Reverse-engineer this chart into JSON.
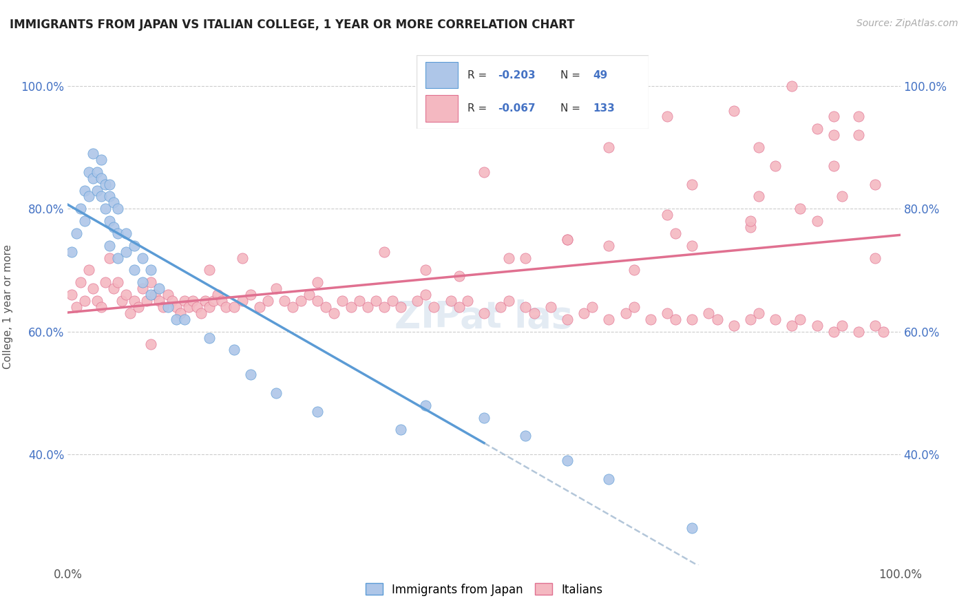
{
  "title": "IMMIGRANTS FROM JAPAN VS ITALIAN COLLEGE, 1 YEAR OR MORE CORRELATION CHART",
  "source_text": "Source: ZipAtlas.com",
  "ylabel": "College, 1 year or more",
  "xlim": [
    0.0,
    1.0
  ],
  "ylim": [
    0.22,
    1.06
  ],
  "x_tick_labels": [
    "0.0%",
    "100.0%"
  ],
  "y_tick_labels": [
    "40.0%",
    "60.0%",
    "80.0%",
    "100.0%"
  ],
  "y_tick_values": [
    0.4,
    0.6,
    0.8,
    1.0
  ],
  "color_japan": "#aec6e8",
  "color_italy": "#f4b8c1",
  "color_japan_line": "#5b9bd5",
  "color_italy_line": "#e07090",
  "color_japan_dark": "#5b9bd5",
  "color_italy_dark": "#e07090",
  "color_dashed": "#a0b8d0",
  "japan_x": [
    0.005,
    0.01,
    0.015,
    0.02,
    0.02,
    0.025,
    0.025,
    0.03,
    0.03,
    0.035,
    0.035,
    0.04,
    0.04,
    0.04,
    0.045,
    0.045,
    0.05,
    0.05,
    0.05,
    0.05,
    0.055,
    0.055,
    0.06,
    0.06,
    0.06,
    0.07,
    0.07,
    0.08,
    0.08,
    0.09,
    0.09,
    0.1,
    0.1,
    0.11,
    0.12,
    0.13,
    0.14,
    0.17,
    0.2,
    0.22,
    0.25,
    0.3,
    0.4,
    0.43,
    0.5,
    0.55,
    0.6,
    0.65,
    0.75
  ],
  "japan_y": [
    0.73,
    0.76,
    0.8,
    0.83,
    0.78,
    0.86,
    0.82,
    0.89,
    0.85,
    0.86,
    0.83,
    0.88,
    0.85,
    0.82,
    0.84,
    0.8,
    0.84,
    0.82,
    0.78,
    0.74,
    0.81,
    0.77,
    0.8,
    0.76,
    0.72,
    0.76,
    0.73,
    0.74,
    0.7,
    0.72,
    0.68,
    0.7,
    0.66,
    0.67,
    0.64,
    0.62,
    0.62,
    0.59,
    0.57,
    0.53,
    0.5,
    0.47,
    0.44,
    0.48,
    0.46,
    0.43,
    0.39,
    0.36,
    0.28
  ],
  "italy_x": [
    0.005,
    0.01,
    0.015,
    0.02,
    0.025,
    0.03,
    0.035,
    0.04,
    0.045,
    0.05,
    0.055,
    0.06,
    0.065,
    0.07,
    0.075,
    0.08,
    0.085,
    0.09,
    0.095,
    0.1,
    0.105,
    0.11,
    0.115,
    0.12,
    0.125,
    0.13,
    0.135,
    0.14,
    0.145,
    0.15,
    0.155,
    0.16,
    0.165,
    0.17,
    0.175,
    0.18,
    0.185,
    0.19,
    0.2,
    0.21,
    0.22,
    0.23,
    0.24,
    0.25,
    0.26,
    0.27,
    0.28,
    0.29,
    0.3,
    0.31,
    0.32,
    0.33,
    0.34,
    0.35,
    0.36,
    0.37,
    0.38,
    0.39,
    0.4,
    0.42,
    0.43,
    0.44,
    0.46,
    0.47,
    0.48,
    0.5,
    0.52,
    0.53,
    0.55,
    0.56,
    0.58,
    0.6,
    0.62,
    0.63,
    0.65,
    0.67,
    0.68,
    0.7,
    0.72,
    0.73,
    0.75,
    0.77,
    0.78,
    0.8,
    0.82,
    0.83,
    0.85,
    0.87,
    0.88,
    0.9,
    0.92,
    0.93,
    0.95,
    0.97,
    0.98,
    0.17,
    0.1,
    0.21,
    0.3,
    0.38,
    0.47,
    0.53,
    0.6,
    0.68,
    0.75,
    0.82,
    0.9,
    0.97,
    0.43,
    0.55,
    0.65,
    0.73,
    0.82,
    0.88,
    0.93,
    0.97,
    0.5,
    0.6,
    0.72,
    0.83,
    0.92,
    0.65,
    0.75,
    0.85,
    0.95,
    0.72,
    0.83,
    0.92,
    0.8,
    0.9,
    0.95,
    0.87,
    0.92
  ],
  "italy_y": [
    0.66,
    0.64,
    0.68,
    0.65,
    0.7,
    0.67,
    0.65,
    0.64,
    0.68,
    0.72,
    0.67,
    0.68,
    0.65,
    0.66,
    0.63,
    0.65,
    0.64,
    0.67,
    0.65,
    0.68,
    0.66,
    0.65,
    0.64,
    0.66,
    0.65,
    0.64,
    0.63,
    0.65,
    0.64,
    0.65,
    0.64,
    0.63,
    0.65,
    0.64,
    0.65,
    0.66,
    0.65,
    0.64,
    0.64,
    0.65,
    0.66,
    0.64,
    0.65,
    0.67,
    0.65,
    0.64,
    0.65,
    0.66,
    0.65,
    0.64,
    0.63,
    0.65,
    0.64,
    0.65,
    0.64,
    0.65,
    0.64,
    0.65,
    0.64,
    0.65,
    0.66,
    0.64,
    0.65,
    0.64,
    0.65,
    0.63,
    0.64,
    0.65,
    0.64,
    0.63,
    0.64,
    0.62,
    0.63,
    0.64,
    0.62,
    0.63,
    0.64,
    0.62,
    0.63,
    0.62,
    0.62,
    0.63,
    0.62,
    0.61,
    0.62,
    0.63,
    0.62,
    0.61,
    0.62,
    0.61,
    0.6,
    0.61,
    0.6,
    0.61,
    0.6,
    0.7,
    0.58,
    0.72,
    0.68,
    0.73,
    0.69,
    0.72,
    0.75,
    0.7,
    0.74,
    0.77,
    0.78,
    0.72,
    0.7,
    0.72,
    0.74,
    0.76,
    0.78,
    0.8,
    0.82,
    0.84,
    0.86,
    0.75,
    0.79,
    0.82,
    0.87,
    0.9,
    0.84,
    0.87,
    0.92,
    0.95,
    0.9,
    0.92,
    0.96,
    0.93,
    0.95,
    1.0,
    0.95,
    0.97
  ]
}
